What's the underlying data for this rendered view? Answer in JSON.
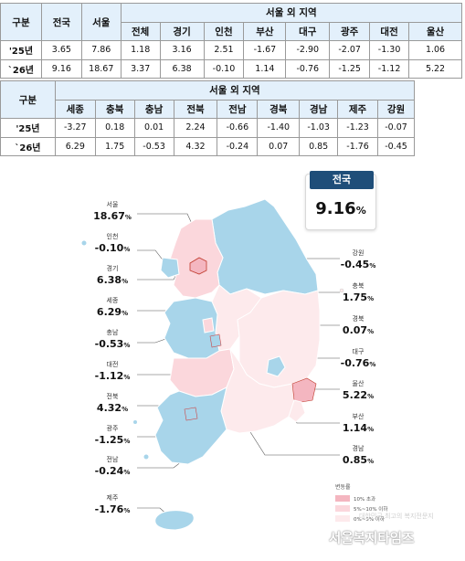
{
  "table1": {
    "header_top": {
      "gubun": "구분",
      "national": "전국",
      "seoul": "서울",
      "outside": "서울 외 지역"
    },
    "header_sub": [
      "전체",
      "경기",
      "인천",
      "부산",
      "대구",
      "광주",
      "대전",
      "울산"
    ],
    "rows": [
      {
        "year": "'25년",
        "values": [
          "3.65",
          "7.86",
          "1.18",
          "3.16",
          "2.51",
          "-1.67",
          "-2.90",
          "-2.07",
          "-1.30",
          "1.06"
        ]
      },
      {
        "year": "`26년",
        "values": [
          "9.16",
          "18.67",
          "3.37",
          "6.38",
          "-0.10",
          "1.14",
          "-0.76",
          "-1.25",
          "-1.12",
          "5.22"
        ]
      }
    ]
  },
  "table2": {
    "gubun": "구분",
    "outside": "서울 외 지역",
    "header_sub": [
      "세종",
      "충북",
      "충남",
      "전북",
      "전남",
      "경북",
      "경남",
      "제주",
      "강원"
    ],
    "rows": [
      {
        "year": "'25년",
        "values": [
          "-3.27",
          "0.18",
          "0.01",
          "2.24",
          "-0.66",
          "-1.40",
          "-1.03",
          "-1.23",
          "-0.07"
        ]
      },
      {
        "year": "`26년",
        "values": [
          "6.29",
          "1.75",
          "-0.53",
          "4.32",
          "-0.24",
          "0.07",
          "0.85",
          "-1.76",
          "-0.45"
        ]
      }
    ]
  },
  "national_badge": {
    "title": "전국",
    "value": "9.16",
    "unit": "%"
  },
  "left_labels": [
    {
      "region": "서울",
      "value": "18.67",
      "unit": "%"
    },
    {
      "region": "인천",
      "value": "-0.10",
      "unit": "%"
    },
    {
      "region": "경기",
      "value": "6.38",
      "unit": "%"
    },
    {
      "region": "세종",
      "value": "6.29",
      "unit": "%"
    },
    {
      "region": "충남",
      "value": "-0.53",
      "unit": "%"
    },
    {
      "region": "대전",
      "value": "-1.12",
      "unit": "%"
    },
    {
      "region": "전북",
      "value": "4.32",
      "unit": "%"
    },
    {
      "region": "광주",
      "value": "-1.25",
      "unit": "%"
    },
    {
      "region": "전남",
      "value": "-0.24",
      "unit": "%"
    },
    {
      "region": "제주",
      "value": "-1.76",
      "unit": "%"
    }
  ],
  "right_labels": [
    {
      "region": "강원",
      "value": "-0.45",
      "unit": "%"
    },
    {
      "region": "충북",
      "value": "1.75",
      "unit": "%"
    },
    {
      "region": "경북",
      "value": "0.07",
      "unit": "%"
    },
    {
      "region": "대구",
      "value": "-0.76",
      "unit": "%"
    },
    {
      "region": "울산",
      "value": "5.22",
      "unit": "%"
    },
    {
      "region": "부산",
      "value": "1.14",
      "unit": "%"
    },
    {
      "region": "경남",
      "value": "0.85",
      "unit": "%"
    }
  ],
  "legend": {
    "title": "변동률",
    "items": [
      {
        "label": "10% 초과",
        "color": "#f4b6c0"
      },
      {
        "label": "5%~10% 이하",
        "color": "#fbd7dc"
      },
      {
        "label": "0%~5% 이하",
        "color": "#fdeaec"
      }
    ]
  },
  "watermark": {
    "text": "서울복지타임즈",
    "sub": "대한민국 최고의 복지전문지"
  },
  "colors": {
    "header_bg": "#e3f0fb",
    "negative": "#a8d5ea",
    "high": "#f4b6c0",
    "mid": "#fbd7dc",
    "low": "#fdeaec",
    "badge": "#1f4e79"
  }
}
